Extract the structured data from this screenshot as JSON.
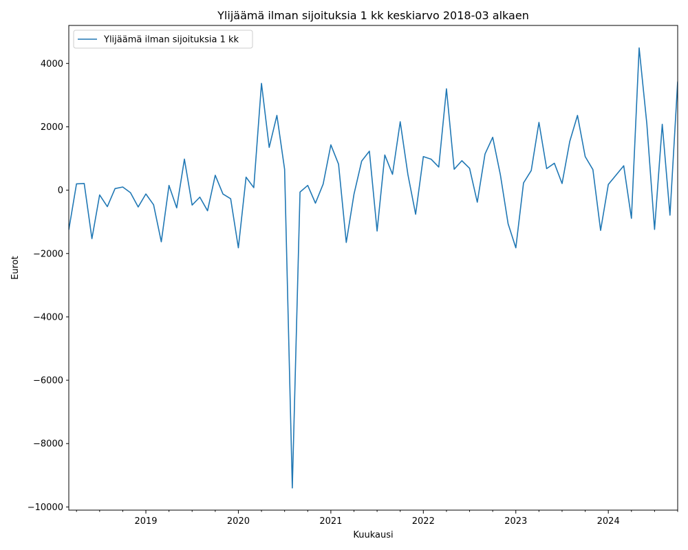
{
  "chart_data": {
    "type": "line",
    "title": "Ylijäämä ilman sijoituksia 1 kk keskiarvo 2018-03 alkaen",
    "xlabel": "Kuukausi",
    "ylabel": "Eurot",
    "x_start": "2018-03",
    "x_end": "2024-10",
    "ylim": [
      -10100,
      5200
    ],
    "y_ticks": [
      -10000,
      -8000,
      -6000,
      -4000,
      -2000,
      0,
      2000,
      4000
    ],
    "y_tick_labels": [
      "−10000",
      "−8000",
      "−6000",
      "−4000",
      "−2000",
      "0",
      "2000",
      "4000"
    ],
    "x_ticks": [
      "2019-01",
      "2020-01",
      "2021-01",
      "2022-01",
      "2023-01",
      "2024-01"
    ],
    "x_tick_labels": [
      "2019",
      "2020",
      "2021",
      "2022",
      "2023",
      "2024"
    ],
    "grid": false,
    "legend_position": "top-left",
    "series": [
      {
        "name": "Ylijäämä ilman sijoituksia 1 kk",
        "color": "#1f77b4",
        "x": [
          "2018-03",
          "2018-04",
          "2018-05",
          "2018-06",
          "2018-07",
          "2018-08",
          "2018-09",
          "2018-10",
          "2018-11",
          "2018-12",
          "2019-01",
          "2019-02",
          "2019-03",
          "2019-04",
          "2019-05",
          "2019-06",
          "2019-07",
          "2019-08",
          "2019-09",
          "2019-10",
          "2019-11",
          "2019-12",
          "2020-01",
          "2020-02",
          "2020-03",
          "2020-04",
          "2020-05",
          "2020-06",
          "2020-07",
          "2020-08",
          "2020-09",
          "2020-10",
          "2020-11",
          "2020-12",
          "2021-01",
          "2021-02",
          "2021-03",
          "2021-04",
          "2021-05",
          "2021-06",
          "2021-07",
          "2021-08",
          "2021-09",
          "2021-10",
          "2021-11",
          "2021-12",
          "2022-01",
          "2022-02",
          "2022-03",
          "2022-04",
          "2022-05",
          "2022-06",
          "2022-07",
          "2022-08",
          "2022-09",
          "2022-10",
          "2022-11",
          "2022-12",
          "2023-01",
          "2023-02",
          "2023-03",
          "2023-04",
          "2023-05",
          "2023-06",
          "2023-07",
          "2023-08",
          "2023-09",
          "2023-10",
          "2023-11",
          "2023-12",
          "2024-01",
          "2024-03",
          "2024-04",
          "2024-05",
          "2024-06",
          "2024-07",
          "2024-08",
          "2024-09",
          "2024-10"
        ],
        "y": [
          -1250,
          200,
          210,
          -1530,
          -150,
          -520,
          50,
          100,
          -80,
          -530,
          -120,
          -460,
          -1630,
          150,
          -560,
          980,
          -470,
          -220,
          -650,
          470,
          -120,
          -270,
          -1820,
          410,
          80,
          3370,
          1350,
          2360,
          660,
          -9400,
          -60,
          150,
          -410,
          190,
          1430,
          820,
          -1650,
          -130,
          920,
          1230,
          -1290,
          1110,
          500,
          2160,
          490,
          -760,
          1060,
          980,
          730,
          3200,
          660,
          930,
          690,
          -380,
          1140,
          1670,
          480,
          -1060,
          -1820,
          230,
          620,
          2140,
          680,
          850,
          210,
          1540,
          2360,
          1060,
          650,
          -1270,
          180,
          770,
          -890,
          4490,
          2090,
          -1240,
          2080,
          -790,
          3430
        ]
      }
    ]
  }
}
